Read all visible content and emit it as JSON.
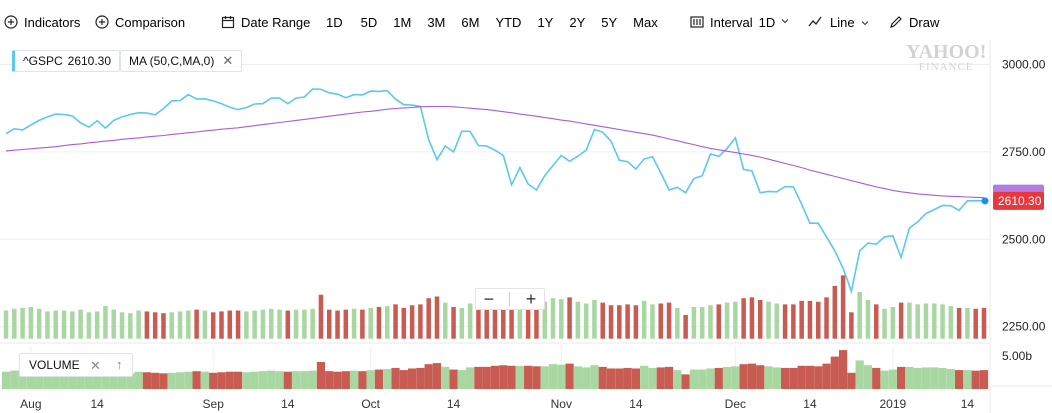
{
  "toolbar": {
    "indicators": "Indicators",
    "comparison": "Comparison",
    "date_range": "Date Range",
    "ranges": [
      "1D",
      "5D",
      "1M",
      "3M",
      "6M",
      "YTD",
      "1Y",
      "2Y",
      "5Y",
      "Max"
    ],
    "interval_label": "Interval",
    "interval_value": "1D",
    "chart_type": "Line",
    "draw": "Draw",
    "icons": [
      "plus-circle-icon",
      "plus-circle-icon",
      "calendar-icon",
      "candle-icon",
      "line-chart-icon",
      "pencil-icon"
    ]
  },
  "legend": {
    "symbol": "^GSPC",
    "symbol_value": "2610.30",
    "ma_label": "MA (50,C,MA,0)",
    "close_glyph": "✕"
  },
  "logo": {
    "line1": "YAHOO!",
    "line2": "FINANCE"
  },
  "volume_panel": {
    "label": "VOLUME",
    "close_glyph": "✕",
    "arrow_glyph": "↑",
    "axis_label": "5.00b"
  },
  "zoom": {
    "minus": "−",
    "plus": "+"
  },
  "last_price_label": "2610.30",
  "colors": {
    "price_line": "#5bc8f0",
    "ma_line": "#a35fd9",
    "up_volume": "#a9d7a1",
    "down_volume": "#c95c52",
    "last_price_badge": "#e8373d",
    "ma_badge": "#b37be0",
    "grid": "#eceff2"
  },
  "chart_data": {
    "type": "line",
    "title": "",
    "xlabel": "",
    "ylabel": "",
    "ylim": [
      2200,
      3050
    ],
    "y_ticks": [
      "3000.00",
      "2750.00",
      "2500.00",
      "2250.00"
    ],
    "x_tick_labels": [
      "Aug",
      "14",
      "Sep",
      "14",
      "Oct",
      "14",
      "Nov",
      "14",
      "Dec",
      "14",
      "2019",
      "14"
    ],
    "dates": [
      "2018-07-30",
      "2018-07-31",
      "2018-08-01",
      "2018-08-02",
      "2018-08-03",
      "2018-08-06",
      "2018-08-07",
      "2018-08-08",
      "2018-08-09",
      "2018-08-10",
      "2018-08-13",
      "2018-08-14",
      "2018-08-15",
      "2018-08-16",
      "2018-08-17",
      "2018-08-20",
      "2018-08-21",
      "2018-08-22",
      "2018-08-23",
      "2018-08-24",
      "2018-08-27",
      "2018-08-28",
      "2018-08-29",
      "2018-08-30",
      "2018-08-31",
      "2018-09-04",
      "2018-09-05",
      "2018-09-06",
      "2018-09-07",
      "2018-09-10",
      "2018-09-11",
      "2018-09-12",
      "2018-09-13",
      "2018-09-14",
      "2018-09-17",
      "2018-09-18",
      "2018-09-19",
      "2018-09-20",
      "2018-09-21",
      "2018-09-24",
      "2018-09-25",
      "2018-09-26",
      "2018-09-27",
      "2018-09-28",
      "2018-10-01",
      "2018-10-02",
      "2018-10-03",
      "2018-10-04",
      "2018-10-05",
      "2018-10-08",
      "2018-10-09",
      "2018-10-10",
      "2018-10-11",
      "2018-10-12",
      "2018-10-15",
      "2018-10-16",
      "2018-10-17",
      "2018-10-18",
      "2018-10-19",
      "2018-10-22",
      "2018-10-23",
      "2018-10-24",
      "2018-10-25",
      "2018-10-26",
      "2018-10-29",
      "2018-10-30",
      "2018-10-31",
      "2018-11-01",
      "2018-11-02",
      "2018-11-05",
      "2018-11-06",
      "2018-11-07",
      "2018-11-08",
      "2018-11-09",
      "2018-11-12",
      "2018-11-13",
      "2018-11-14",
      "2018-11-15",
      "2018-11-16",
      "2018-11-19",
      "2018-11-20",
      "2018-11-21",
      "2018-11-23",
      "2018-11-26",
      "2018-11-27",
      "2018-11-28",
      "2018-11-29",
      "2018-11-30",
      "2018-12-03",
      "2018-12-04",
      "2018-12-06",
      "2018-12-07",
      "2018-12-10",
      "2018-12-11",
      "2018-12-12",
      "2018-12-13",
      "2018-12-14",
      "2018-12-17",
      "2018-12-18",
      "2018-12-19",
      "2018-12-20",
      "2018-12-21",
      "2018-12-24",
      "2018-12-26",
      "2018-12-27",
      "2018-12-28",
      "2018-12-31",
      "2019-01-02",
      "2019-01-03",
      "2019-01-04",
      "2019-01-07",
      "2019-01-08",
      "2019-01-09",
      "2019-01-10",
      "2019-01-11",
      "2019-01-14",
      "2019-01-15",
      "2019-01-16",
      "2019-01-17"
    ],
    "series": [
      {
        "values": [
          2802,
          2816,
          2813,
          2827,
          2840,
          2850,
          2858,
          2857,
          2853,
          2833,
          2821,
          2839,
          2818,
          2840,
          2850,
          2857,
          2862,
          2861,
          2856,
          2874,
          2896,
          2897,
          2914,
          2901,
          2902,
          2896,
          2888,
          2878,
          2871,
          2877,
          2887,
          2888,
          2904,
          2904,
          2888,
          2904,
          2907,
          2930,
          2929,
          2919,
          2915,
          2905,
          2914,
          2913,
          2924,
          2923,
          2925,
          2901,
          2885,
          2884,
          2880,
          2785,
          2728,
          2767,
          2750,
          2809,
          2809,
          2768,
          2767,
          2755,
          2740,
          2656,
          2705,
          2658,
          2641,
          2682,
          2711,
          2740,
          2723,
          2738,
          2755,
          2814,
          2806,
          2781,
          2726,
          2722,
          2701,
          2730,
          2736,
          2690,
          2641,
          2649,
          2633,
          2674,
          2682,
          2744,
          2737,
          2760,
          2790,
          2700,
          2696,
          2633,
          2637,
          2636,
          2651,
          2650,
          2600,
          2546,
          2546,
          2507,
          2467,
          2417,
          2351,
          2467,
          2489,
          2486,
          2507,
          2510,
          2448,
          2532,
          2550,
          2574,
          2585,
          2597,
          2596,
          2583,
          2610,
          2610,
          2610
        ],
        "color": "#5bc8f0"
      },
      {
        "values": [
          2753,
          2755,
          2757,
          2759,
          2761,
          2763,
          2765,
          2768,
          2771,
          2773,
          2776,
          2778,
          2781,
          2783,
          2786,
          2788,
          2790,
          2793,
          2795,
          2797,
          2800,
          2802,
          2805,
          2807,
          2810,
          2812,
          2815,
          2817,
          2819,
          2822,
          2825,
          2828,
          2831,
          2834,
          2837,
          2840,
          2843,
          2846,
          2849,
          2852,
          2855,
          2858,
          2861,
          2864,
          2866,
          2869,
          2872,
          2874,
          2876,
          2877,
          2879,
          2880,
          2880,
          2880,
          2879,
          2877,
          2875,
          2873,
          2871,
          2868,
          2865,
          2862,
          2858,
          2855,
          2852,
          2848,
          2845,
          2841,
          2838,
          2834,
          2830,
          2826,
          2822,
          2818,
          2814,
          2810,
          2806,
          2802,
          2798,
          2793,
          2787,
          2782,
          2776,
          2771,
          2765,
          2760,
          2756,
          2752,
          2748,
          2744,
          2740,
          2735,
          2729,
          2723,
          2717,
          2711,
          2705,
          2698,
          2692,
          2686,
          2680,
          2674,
          2668,
          2662,
          2656,
          2650,
          2645,
          2640,
          2636,
          2633,
          2630,
          2628,
          2626,
          2624,
          2623,
          2622,
          2621,
          2620,
          2619
        ],
        "color": "#a35fd9"
      }
    ],
    "volume": {
      "axis_max_label": "5.00b",
      "values": [
        3.2,
        3.4,
        3.5,
        3.6,
        3.4,
        3.1,
        3.2,
        3.2,
        3.1,
        3.3,
        3.0,
        3.1,
        3.7,
        3.3,
        3.0,
        2.9,
        3.2,
        3.1,
        3.0,
        2.9,
        3.0,
        3.1,
        3.2,
        3.3,
        3.2,
        3.0,
        3.1,
        3.2,
        3.2,
        3.1,
        3.2,
        3.3,
        3.4,
        3.3,
        3.2,
        3.3,
        3.3,
        3.4,
        5.0,
        3.3,
        3.2,
        3.3,
        3.4,
        3.3,
        3.5,
        3.6,
        3.7,
        3.9,
        3.5,
        3.8,
        3.9,
        4.6,
        4.8,
        4.1,
        3.6,
        3.5,
        4.0,
        4.1,
        4.1,
        4.3,
        4.4,
        4.3,
        4.3,
        4.3,
        4.2,
        4.2,
        4.6,
        4.5,
        4.7,
        4.2,
        4.0,
        4.4,
        4.1,
        3.8,
        3.8,
        3.9,
        3.8,
        4.3,
        3.9,
        4.0,
        4.1,
        3.5,
        2.7,
        3.6,
        3.6,
        3.8,
        3.9,
        4.1,
        4.2,
        4.6,
        4.7,
        4.4,
        4.2,
        4.0,
        3.9,
        3.9,
        4.3,
        4.3,
        4.2,
        4.7,
        6.0,
        7.2,
        3.0,
        5.3,
        4.4,
        3.9,
        3.4,
        3.6,
        4.1,
        4.1,
        3.9,
        4.0,
        4.0,
        3.9,
        3.7,
        3.5,
        3.5,
        3.4,
        3.5
      ],
      "up_or_down": [
        1,
        1,
        1,
        1,
        1,
        1,
        1,
        1,
        1,
        1,
        1,
        1,
        1,
        1,
        1,
        1,
        1,
        0,
        0,
        0,
        1,
        1,
        1,
        0,
        1,
        0,
        0,
        0,
        0,
        1,
        1,
        1,
        1,
        1,
        0,
        1,
        1,
        1,
        0,
        0,
        0,
        0,
        1,
        0,
        1,
        0,
        1,
        0,
        0,
        0,
        0,
        0,
        0,
        1,
        0,
        1,
        1,
        0,
        0,
        0,
        0,
        0,
        1,
        0,
        0,
        1,
        1,
        1,
        0,
        1,
        1,
        1,
        0,
        0,
        0,
        0,
        0,
        1,
        1,
        0,
        0,
        1,
        0,
        1,
        1,
        1,
        0,
        1,
        1,
        0,
        0,
        0,
        1,
        1,
        0,
        0,
        0,
        0,
        0,
        0,
        0,
        0,
        0,
        1,
        1,
        0,
        1,
        1,
        0,
        1,
        1,
        1,
        1,
        1,
        1,
        0,
        1,
        0,
        0
      ]
    }
  }
}
